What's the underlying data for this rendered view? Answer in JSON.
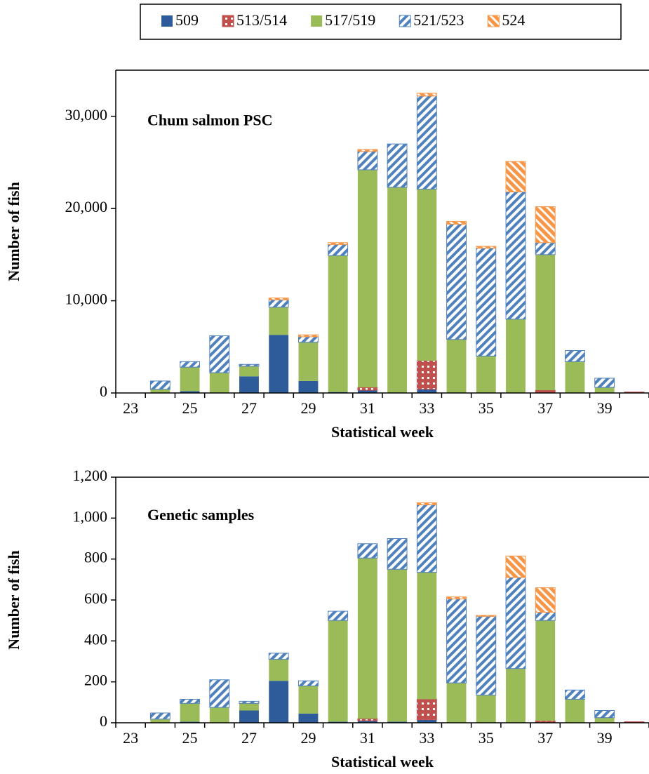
{
  "chart_data": [
    {
      "type": "bar",
      "stacked": true,
      "title": "Chum salmon PSC",
      "x_label": "Statistical week",
      "y_label": "Number of fish",
      "legend": "top",
      "categories": [
        "23",
        null,
        "25",
        null,
        "27",
        null,
        "29",
        null,
        "31",
        null,
        "33",
        null,
        "35",
        null,
        "37",
        null,
        "39",
        null
      ],
      "ylim": [
        0,
        35000
      ],
      "yticks": [
        0,
        {
          "value": 10000,
          "label": "10,000"
        },
        {
          "value": 20000,
          "label": "20,000"
        },
        {
          "value": 30000,
          "label": "30,000"
        }
      ],
      "series": [
        {
          "name": "509",
          "color": "#2e5c9a",
          "pattern": "solid",
          "values": [
            0,
            0,
            200,
            0,
            1800,
            6300,
            1300,
            100,
            300,
            0,
            400,
            0,
            0,
            0,
            0,
            0,
            0,
            0
          ]
        },
        {
          "name": "513/514",
          "color": "#c0504d",
          "pattern": "dots",
          "values": [
            0,
            0,
            0,
            0,
            0,
            0,
            0,
            0,
            300,
            0,
            3100,
            0,
            0,
            0,
            300,
            0,
            0,
            100
          ]
        },
        {
          "name": "517/519",
          "color": "#9bbb59",
          "pattern": "solid",
          "values": [
            0,
            400,
            2600,
            2200,
            1100,
            3000,
            4200,
            14800,
            23600,
            22300,
            18600,
            5800,
            4000,
            8000,
            14700,
            3400,
            600,
            0
          ]
        },
        {
          "name": "521/523",
          "color": "#4f81bd",
          "pattern": "stripes-up",
          "values": [
            0,
            900,
            600,
            4000,
            200,
            800,
            600,
            1200,
            2000,
            4700,
            10100,
            12500,
            11700,
            13800,
            1300,
            1200,
            1000,
            0
          ]
        },
        {
          "name": "524",
          "color": "#f79646",
          "pattern": "stripes-down",
          "values": [
            0,
            0,
            0,
            0,
            0,
            200,
            200,
            200,
            200,
            0,
            300,
            300,
            200,
            3300,
            3900,
            0,
            0,
            0
          ]
        }
      ]
    },
    {
      "type": "bar",
      "stacked": true,
      "title": "Genetic samples",
      "x_label": "Statistical week",
      "y_label": "Number of fish",
      "categories": [
        "23",
        null,
        "25",
        null,
        "27",
        null,
        "29",
        null,
        "31",
        null,
        "33",
        null,
        "35",
        null,
        "37",
        null,
        "39",
        null
      ],
      "ylim": [
        0,
        1200
      ],
      "yticks": [
        0,
        200,
        400,
        600,
        800,
        {
          "value": 1000,
          "label": "1,000"
        },
        {
          "value": 1200,
          "label": "1,200"
        }
      ],
      "series": [
        {
          "color": "#2e5c9a",
          "pattern": "solid",
          "values": [
            0,
            0,
            5,
            0,
            60,
            205,
            45,
            5,
            10,
            5,
            15,
            0,
            0,
            0,
            0,
            0,
            0,
            0
          ]
        },
        {
          "color": "#c0504d",
          "pattern": "dots",
          "values": [
            0,
            0,
            0,
            0,
            0,
            0,
            0,
            0,
            10,
            0,
            100,
            0,
            0,
            0,
            10,
            0,
            0,
            5
          ]
        },
        {
          "color": "#9bbb59",
          "pattern": "solid",
          "values": [
            0,
            18,
            90,
            75,
            35,
            105,
            135,
            495,
            785,
            745,
            620,
            195,
            135,
            265,
            490,
            115,
            25,
            0
          ]
        },
        {
          "color": "#4f81bd",
          "pattern": "stripes-up",
          "values": [
            0,
            30,
            20,
            135,
            10,
            30,
            25,
            45,
            70,
            150,
            330,
            410,
            385,
            445,
            40,
            45,
            35,
            0
          ]
        },
        {
          "color": "#f79646",
          "pattern": "stripes-down",
          "values": [
            0,
            0,
            0,
            0,
            0,
            0,
            0,
            0,
            0,
            0,
            10,
            10,
            5,
            105,
            120,
            0,
            0,
            0
          ]
        }
      ]
    }
  ]
}
